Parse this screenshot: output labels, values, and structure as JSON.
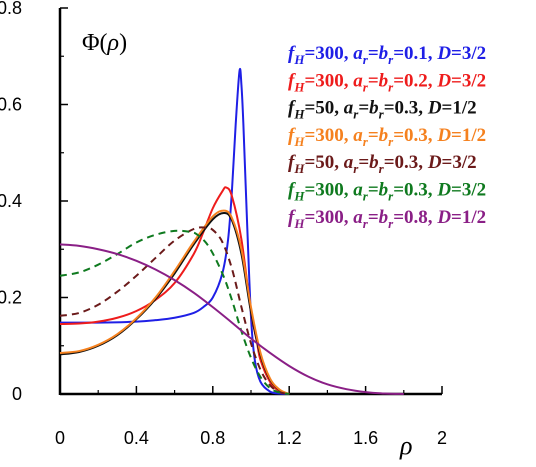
{
  "chart_data": {
    "type": "line",
    "title_prefix": "Φ(",
    "title_var": "ρ",
    "title_suffix": ")",
    "xlabel": "ρ",
    "ylabel": "",
    "xlim": [
      0,
      2
    ],
    "ylim": [
      0,
      0.8
    ],
    "xticks": [
      "0",
      "0.4",
      "0.8",
      "1.2",
      "1.6",
      "2"
    ],
    "xtick_values": [
      0,
      0.4,
      0.8,
      1.2,
      1.6,
      2
    ],
    "yticks": [
      "0",
      "0.2",
      "0.4",
      "0.6",
      "0.8"
    ],
    "ytick_values": [
      0,
      0.2,
      0.4,
      0.6,
      0.8
    ],
    "legend_position": "top-right",
    "grid": false,
    "series": [
      {
        "name": "f_H=300, a_r=b_r=0.1, D=3/2",
        "legend": [
          [
            "f",
            "H",
            "=300, "
          ],
          [
            "a",
            "r",
            "="
          ],
          [
            "b",
            "r",
            "=0.1, "
          ],
          [
            "D",
            "",
            "=3/2"
          ]
        ],
        "color": "#1f1fe6",
        "dash": "solid",
        "x": [
          0,
          0.2,
          0.4,
          0.5,
          0.6,
          0.7,
          0.75,
          0.8,
          0.85,
          0.88,
          0.9,
          0.92,
          0.94,
          0.95,
          0.96,
          0.98,
          1.0,
          1.02,
          1.05,
          1.1,
          1.15,
          1.2
        ],
        "y": [
          0.148,
          0.148,
          0.15,
          0.153,
          0.158,
          0.168,
          0.18,
          0.2,
          0.25,
          0.32,
          0.42,
          0.56,
          0.67,
          0.64,
          0.56,
          0.35,
          0.16,
          0.07,
          0.025,
          0.005,
          0.001,
          0
        ]
      },
      {
        "name": "f_H=300, a_r=b_r=0.2, D=3/2",
        "legend": [
          [
            "f",
            "H",
            "=300, "
          ],
          [
            "a",
            "r",
            "="
          ],
          [
            "b",
            "r",
            "=0.2, "
          ],
          [
            "D",
            "",
            "=3/2"
          ]
        ],
        "color": "#ee1c1c",
        "dash": "solid",
        "x": [
          0,
          0.1,
          0.2,
          0.3,
          0.4,
          0.5,
          0.6,
          0.7,
          0.75,
          0.8,
          0.85,
          0.87,
          0.9,
          0.95,
          1.0,
          1.03,
          1.05,
          1.1,
          1.15,
          1.2
        ],
        "y": [
          0.145,
          0.146,
          0.15,
          0.158,
          0.172,
          0.195,
          0.23,
          0.29,
          0.335,
          0.385,
          0.42,
          0.428,
          0.41,
          0.32,
          0.17,
          0.11,
          0.07,
          0.025,
          0.005,
          0
        ]
      },
      {
        "name": "f_H=50, a_r=b_r=0.3, D=1/2",
        "legend": [
          [
            "f",
            "H",
            "=50, "
          ],
          [
            "a",
            "r",
            "="
          ],
          [
            "b",
            "r",
            "=0.3, "
          ],
          [
            "D",
            "",
            "=1/2"
          ]
        ],
        "color": "#111111",
        "dash": "solid",
        "x": [
          0,
          0.1,
          0.2,
          0.3,
          0.4,
          0.5,
          0.6,
          0.7,
          0.8,
          0.86,
          0.9,
          0.95,
          1.0,
          1.05,
          1.1,
          1.15,
          1.2
        ],
        "y": [
          0.082,
          0.087,
          0.1,
          0.122,
          0.155,
          0.197,
          0.25,
          0.31,
          0.362,
          0.375,
          0.36,
          0.29,
          0.17,
          0.08,
          0.03,
          0.008,
          0
        ]
      },
      {
        "name": "f_H=300, a_r=b_r=0.3, D=1/2",
        "legend": [
          [
            "f",
            "H",
            "=300, "
          ],
          [
            "a",
            "r",
            "="
          ],
          [
            "b",
            "r",
            "=0.3, "
          ],
          [
            "D",
            "",
            "=1/2"
          ]
        ],
        "color": "#f5811f",
        "dash": "solid",
        "x": [
          0,
          0.1,
          0.2,
          0.3,
          0.4,
          0.5,
          0.6,
          0.7,
          0.8,
          0.86,
          0.9,
          0.95,
          1.0,
          1.05,
          1.1,
          1.15,
          1.2
        ],
        "y": [
          0.085,
          0.089,
          0.102,
          0.124,
          0.157,
          0.2,
          0.255,
          0.315,
          0.368,
          0.38,
          0.365,
          0.3,
          0.18,
          0.085,
          0.032,
          0.009,
          0
        ]
      },
      {
        "name": "f_H=50, a_r=b_r=0.3, D=3/2",
        "legend": [
          [
            "f",
            "H",
            "=50, "
          ],
          [
            "a",
            "r",
            "="
          ],
          [
            "b",
            "r",
            "=0.3, "
          ],
          [
            "D",
            "",
            "=3/2"
          ]
        ],
        "color": "#6b1a1a",
        "dash": "dashed",
        "x": [
          0,
          0.1,
          0.2,
          0.3,
          0.4,
          0.5,
          0.6,
          0.7,
          0.76,
          0.8,
          0.85,
          0.9,
          0.95,
          1.0,
          1.05,
          1.1,
          1.15,
          1.2
        ],
        "y": [
          0.162,
          0.168,
          0.185,
          0.212,
          0.245,
          0.282,
          0.318,
          0.342,
          0.345,
          0.34,
          0.315,
          0.26,
          0.18,
          0.105,
          0.05,
          0.018,
          0.004,
          0
        ]
      },
      {
        "name": "f_H=300, a_r=b_r=0.3, D=3/2",
        "legend": [
          [
            "f",
            "H",
            "=300, "
          ],
          [
            "a",
            "r",
            "="
          ],
          [
            "b",
            "r",
            "=0.3, "
          ],
          [
            "D",
            "",
            "=3/2"
          ]
        ],
        "color": "#0f7a1f",
        "dash": "dashed",
        "x": [
          0,
          0.1,
          0.2,
          0.3,
          0.4,
          0.5,
          0.6,
          0.68,
          0.72,
          0.78,
          0.85,
          0.9,
          0.95,
          1.0,
          1.05,
          1.1,
          1.15,
          1.2
        ],
        "y": [
          0.245,
          0.252,
          0.268,
          0.29,
          0.314,
          0.33,
          0.338,
          0.336,
          0.33,
          0.305,
          0.25,
          0.195,
          0.13,
          0.075,
          0.035,
          0.012,
          0.003,
          0
        ]
      },
      {
        "name": "f_H=300, a_r=b_r=0.8, D=1/2",
        "legend": [
          [
            "f",
            "H",
            "=300, "
          ],
          [
            "a",
            "r",
            "="
          ],
          [
            "b",
            "r",
            "=0.8, "
          ],
          [
            "D",
            "",
            "=1/2"
          ]
        ],
        "color": "#8a1f86",
        "dash": "solid",
        "x": [
          0,
          0.1,
          0.2,
          0.3,
          0.4,
          0.5,
          0.6,
          0.7,
          0.8,
          0.9,
          1.0,
          1.1,
          1.2,
          1.3,
          1.4,
          1.5,
          1.6,
          1.7,
          1.8
        ],
        "y": [
          0.31,
          0.307,
          0.3,
          0.29,
          0.276,
          0.258,
          0.236,
          0.21,
          0.18,
          0.148,
          0.115,
          0.085,
          0.058,
          0.036,
          0.02,
          0.01,
          0.004,
          0.001,
          0
        ]
      }
    ]
  }
}
